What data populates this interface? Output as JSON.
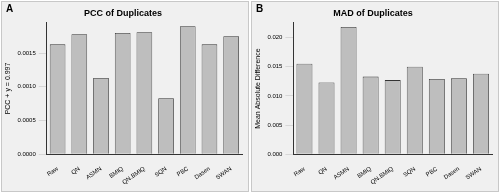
{
  "chart_data": [
    {
      "type": "bar",
      "title": "PCC of Duplicates",
      "annotations": [
        "A"
      ],
      "y_label": "PCC + y = 0.997",
      "categories": [
        "Raw",
        "QN",
        "ASMN",
        "BMIQ",
        "QN.BMIQ",
        "SQN",
        "PBC",
        "Dasen",
        "SWAN"
      ],
      "values": [
        0.00163,
        0.00178,
        0.00113,
        0.0018,
        0.00181,
        0.00083,
        0.0019,
        0.00163,
        0.00175
      ],
      "color": "#bebebe",
      "ylim": [
        0,
        0.00195
      ],
      "yticks": [
        {
          "value": 0,
          "label": "0.0000"
        },
        0.0005,
        {
          "value": 0.001,
          "label": "0.0010"
        },
        0.0015
      ],
      "grid": false
    },
    {
      "type": "bar",
      "title": "MAD of Duplicates",
      "annotations": [
        "B"
      ],
      "y_label": "Mean Absolute Difference",
      "categories": [
        "Raw",
        "QN",
        "ASMN",
        "BMIQ",
        "QN.BMIQ",
        "SQN",
        "PBC",
        "Dasen",
        "SWAN"
      ],
      "values": [
        0.0155,
        0.0123,
        0.0218,
        0.0133,
        0.0127,
        0.015,
        0.0129,
        0.013,
        0.0138
      ],
      "color": "#bebebe",
      "ylim": [
        0,
        0.0225
      ],
      "yticks": [
        {
          "value": 0,
          "label": "0.000"
        },
        0.005,
        {
          "value": 0.01,
          "label": "0.010"
        },
        0.015,
        {
          "value": 0.02,
          "label": "0.020"
        }
      ],
      "grid": false
    }
  ]
}
